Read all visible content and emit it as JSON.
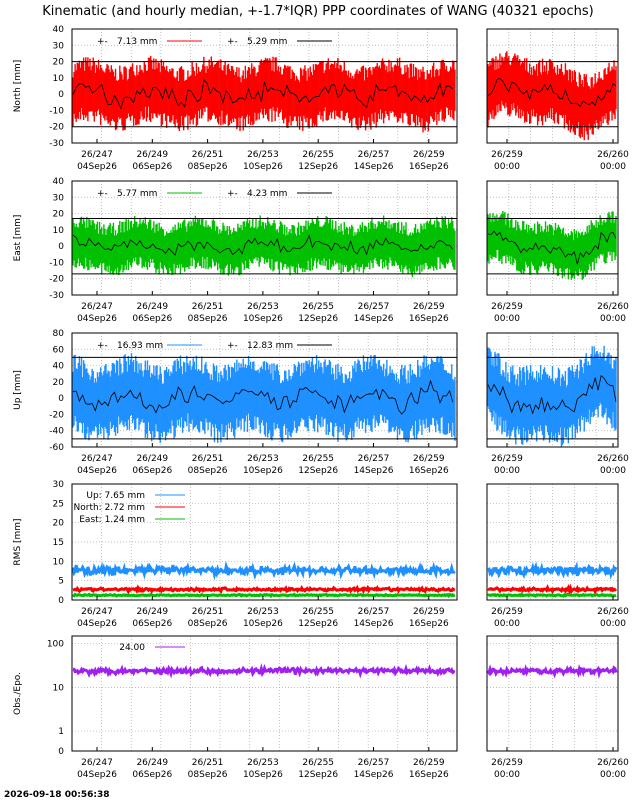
{
  "title": "Kinematic (and hourly median, +-1.7*IQR) PPP coordinates of WANG (40321 epochs)",
  "footer_timestamp": "2026-09-18 00:56:38",
  "colors": {
    "north": "#ff0000",
    "east": "#00c000",
    "up": "#1e90ff",
    "obs": "#a020f0",
    "median": "#000000"
  },
  "chart_data": [
    {
      "id": "north",
      "type": "scatter",
      "ylabel": "North [mm]",
      "ylim": [
        -30,
        40
      ],
      "yticks": [
        "40",
        "30",
        "20",
        "10",
        "0",
        "-10",
        "-20",
        "-30"
      ],
      "limit_lines": [
        20,
        -20
      ],
      "left_xlim": [
        "26/246 12:00",
        "26/259 18:00"
      ],
      "left_xticks": [
        [
          "26/247",
          "04Sep26"
        ],
        [
          "26/249",
          "06Sep26"
        ],
        [
          "26/251",
          "08Sep26"
        ],
        [
          "26/253",
          "10Sep26"
        ],
        [
          "26/255",
          "12Sep26"
        ],
        [
          "26/257",
          "14Sep26"
        ],
        [
          "26/259",
          "16Sep26"
        ]
      ],
      "right_xticks": [
        [
          "26/259",
          "00:00"
        ],
        [
          "26/260",
          "00:00"
        ]
      ],
      "legend": [
        {
          "text": "7.13 mm",
          "kind": "kinematic"
        },
        {
          "text": "5.29 mm",
          "kind": "median"
        }
      ],
      "series": [
        {
          "color_key": "north",
          "spread_mm": 7.13,
          "median_spread_mm": 5.29
        }
      ]
    },
    {
      "id": "east",
      "type": "scatter",
      "ylabel": "East [mm]",
      "ylim": [
        -30,
        40
      ],
      "yticks": [
        "40",
        "30",
        "20",
        "10",
        "0",
        "-10",
        "-20",
        "-30"
      ],
      "limit_lines": [
        17,
        -17
      ],
      "left_xlim": [
        "26/246 12:00",
        "26/259 18:00"
      ],
      "left_xticks": [
        [
          "26/247",
          "04Sep26"
        ],
        [
          "26/249",
          "06Sep26"
        ],
        [
          "26/251",
          "08Sep26"
        ],
        [
          "26/253",
          "10Sep26"
        ],
        [
          "26/255",
          "12Sep26"
        ],
        [
          "26/257",
          "14Sep26"
        ],
        [
          "26/259",
          "16Sep26"
        ]
      ],
      "right_xticks": [
        [
          "26/259",
          "00:00"
        ],
        [
          "26/260",
          "00:00"
        ]
      ],
      "legend": [
        {
          "text": "5.77 mm",
          "kind": "kinematic"
        },
        {
          "text": "4.23 mm",
          "kind": "median"
        }
      ],
      "series": [
        {
          "color_key": "east",
          "spread_mm": 5.77,
          "median_spread_mm": 4.23
        }
      ]
    },
    {
      "id": "up",
      "type": "scatter",
      "ylabel": "Up [mm]",
      "ylim": [
        -60,
        80
      ],
      "yticks": [
        "80",
        "60",
        "40",
        "20",
        "0",
        "-20",
        "-40",
        "-60"
      ],
      "limit_lines": [
        50,
        -50
      ],
      "left_xlim": [
        "26/246 12:00",
        "26/259 18:00"
      ],
      "left_xticks": [
        [
          "26/247",
          "04Sep26"
        ],
        [
          "26/249",
          "06Sep26"
        ],
        [
          "26/251",
          "08Sep26"
        ],
        [
          "26/253",
          "10Sep26"
        ],
        [
          "26/255",
          "12Sep26"
        ],
        [
          "26/257",
          "14Sep26"
        ],
        [
          "26/259",
          "16Sep26"
        ]
      ],
      "right_xticks": [
        [
          "26/259",
          "00:00"
        ],
        [
          "26/260",
          "00:00"
        ]
      ],
      "legend": [
        {
          "text": "16.93 mm",
          "kind": "kinematic"
        },
        {
          "text": "12.83 mm",
          "kind": "median"
        }
      ],
      "series": [
        {
          "color_key": "up",
          "spread_mm": 16.93,
          "median_spread_mm": 12.83
        }
      ]
    },
    {
      "id": "rms",
      "type": "line",
      "ylabel": "RMS [mm]",
      "ylim": [
        0,
        30
      ],
      "yticks": [
        "30",
        "25",
        "20",
        "15",
        "10",
        "5",
        "0"
      ],
      "left_xlim": [
        "26/246 12:00",
        "26/259 18:00"
      ],
      "left_xticks": [
        [
          "26/247",
          "04Sep26"
        ],
        [
          "26/249",
          "06Sep26"
        ],
        [
          "26/251",
          "08Sep26"
        ],
        [
          "26/253",
          "10Sep26"
        ],
        [
          "26/255",
          "12Sep26"
        ],
        [
          "26/257",
          "14Sep26"
        ],
        [
          "26/259",
          "16Sep26"
        ]
      ],
      "right_xticks": [
        [
          "26/259",
          "00:00"
        ],
        [
          "26/260",
          "00:00"
        ]
      ],
      "legend": [
        {
          "text": "Up:   7.65 mm",
          "kind": "up"
        },
        {
          "text": "North:   2.72 mm",
          "kind": "north"
        },
        {
          "text": "East:   1.24 mm",
          "kind": "east"
        }
      ],
      "series": [
        {
          "name": "Up",
          "color_key": "up",
          "level_mm": 7.65
        },
        {
          "name": "North",
          "color_key": "north",
          "level_mm": 2.72
        },
        {
          "name": "East",
          "color_key": "east",
          "level_mm": 1.24
        }
      ]
    },
    {
      "id": "obs",
      "type": "line",
      "ylabel": "Obs./Epo.",
      "ylim": [
        0,
        150
      ],
      "yscale": "log",
      "yticks": [
        "100",
        "10",
        "1",
        "0"
      ],
      "left_xlim": [
        "26/246 12:00",
        "26/259 18:00"
      ],
      "left_xticks": [
        [
          "26/247",
          "04Sep26"
        ],
        [
          "26/249",
          "06Sep26"
        ],
        [
          "26/251",
          "08Sep26"
        ],
        [
          "26/253",
          "10Sep26"
        ],
        [
          "26/255",
          "12Sep26"
        ],
        [
          "26/257",
          "14Sep26"
        ],
        [
          "26/259",
          "16Sep26"
        ]
      ],
      "right_xticks": [
        [
          "26/259",
          "00:00"
        ],
        [
          "26/260",
          "00:00"
        ]
      ],
      "legend": [
        {
          "text": "24.00",
          "kind": "obs"
        }
      ],
      "series": [
        {
          "color_key": "obs",
          "level": 24.0
        }
      ]
    }
  ]
}
